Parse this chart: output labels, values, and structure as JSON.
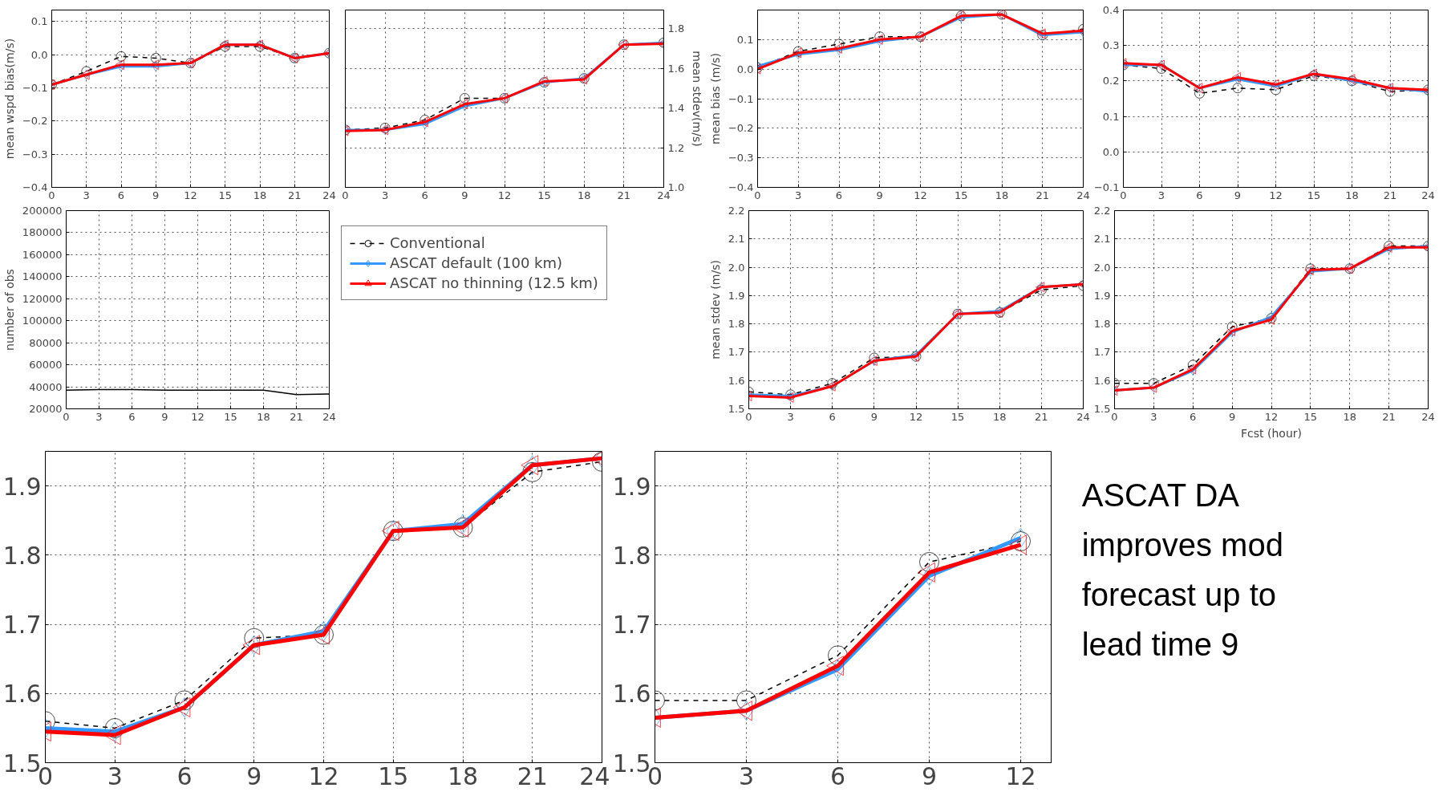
{
  "chart_data": [
    {
      "type": "line",
      "ylabel": "mean wspd bias(m/s)",
      "x": [
        0,
        3,
        6,
        9,
        12,
        15,
        18,
        21,
        24
      ],
      "xlim": [
        0,
        24
      ],
      "xticks": [
        0,
        3,
        6,
        9,
        12,
        15,
        18,
        21,
        24
      ],
      "ylim": [
        -0.4,
        0.135
      ],
      "yticks": [
        {
          "value": -0.4,
          "label": "−0.4"
        },
        {
          "value": -0.3,
          "label": "−0.3"
        },
        {
          "value": -0.2,
          "label": "−0.2"
        },
        {
          "value": -0.1,
          "label": "−0.1"
        },
        {
          "value": 0,
          "label": "0.0"
        },
        0.1
      ],
      "grid": true,
      "legend": "bottom right",
      "series": [
        {
          "name": "Conventional",
          "color": "#000000",
          "marker": "circle",
          "line_style": "dashed",
          "values": [
            -0.09,
            -0.05,
            -0.005,
            -0.01,
            -0.025,
            0.025,
            0.025,
            -0.01,
            0.005
          ]
        },
        {
          "name": "ASCAT default (100 km)",
          "color": "#3399ff",
          "marker": "diamond",
          "line_style": "solid",
          "values": [
            -0.09,
            -0.06,
            -0.035,
            -0.035,
            -0.025,
            0.03,
            0.03,
            -0.01,
            0.005
          ]
        },
        {
          "name": "ASCAT no thinning (12.5 km)",
          "color": "#ff0000",
          "marker": "triangle",
          "line_style": "solid",
          "values": [
            -0.09,
            -0.06,
            -0.03,
            -0.03,
            -0.025,
            0.03,
            0.03,
            -0.01,
            0.005
          ]
        }
      ]
    },
    {
      "type": "line",
      "y2label": "mean stdev(m/s)",
      "x": [
        0,
        3,
        6,
        9,
        12,
        15,
        18,
        21,
        24
      ],
      "xlim": [
        0,
        24
      ],
      "xticks": [
        0,
        3,
        6,
        9,
        12,
        15,
        18,
        21,
        24
      ],
      "y2lim": [
        1.0,
        1.895
      ],
      "y2ticks": [
        {
          "value": 1,
          "label": "1.0"
        },
        1.2,
        1.4,
        1.6,
        1.8
      ],
      "grid": true,
      "series": [
        {
          "color": "#000000",
          "marker": "circle",
          "line_style": "dashed",
          "axis": "y2",
          "values": [
            1.29,
            1.3,
            1.34,
            1.45,
            1.45,
            1.53,
            1.55,
            1.72,
            1.73
          ]
        },
        {
          "color": "#3399ff",
          "marker": "diamond",
          "line_style": "solid",
          "axis": "y2",
          "values": [
            1.29,
            1.29,
            1.32,
            1.41,
            1.45,
            1.53,
            1.55,
            1.72,
            1.73
          ]
        },
        {
          "color": "#ff0000",
          "marker": "triangle",
          "line_style": "solid",
          "axis": "y2",
          "values": [
            1.285,
            1.29,
            1.33,
            1.42,
            1.45,
            1.535,
            1.545,
            1.72,
            1.725
          ]
        }
      ]
    },
    {
      "type": "line",
      "ylabel": "mean bias (m/s)",
      "x": [
        0,
        3,
        6,
        9,
        12,
        15,
        18,
        21,
        24
      ],
      "xlim": [
        0,
        24
      ],
      "xticks": [
        0,
        3,
        6,
        9,
        12,
        15,
        18,
        21,
        24
      ],
      "ylim": [
        -0.4,
        0.2
      ],
      "yticks": [
        {
          "value": -0.4,
          "label": "−0.4"
        },
        {
          "value": -0.3,
          "label": "−0.3"
        },
        {
          "value": -0.2,
          "label": "−0.2"
        },
        {
          "value": -0.1,
          "label": "−0.1"
        },
        {
          "value": 0,
          "label": "0.0"
        },
        0.1
      ],
      "grid": true,
      "series": [
        {
          "color": "#000000",
          "marker": "circle",
          "line_style": "dashed",
          "values": [
            0.005,
            0.06,
            0.085,
            0.11,
            0.11,
            0.18,
            0.185,
            0.115,
            0.135
          ]
        },
        {
          "color": "#3399ff",
          "marker": "diamond",
          "line_style": "solid",
          "values": [
            0.01,
            0.05,
            0.065,
            0.095,
            0.11,
            0.175,
            0.185,
            0.115,
            0.125
          ]
        },
        {
          "color": "#ff0000",
          "marker": "triangle",
          "line_style": "solid",
          "values": [
            0.0,
            0.055,
            0.07,
            0.1,
            0.11,
            0.18,
            0.185,
            0.12,
            0.13
          ]
        }
      ]
    },
    {
      "type": "line",
      "x": [
        0,
        3,
        6,
        9,
        12,
        15,
        18,
        21,
        24
      ],
      "xlim": [
        0,
        24
      ],
      "xticks": [
        0,
        3,
        6,
        9,
        12,
        15,
        18,
        21,
        24
      ],
      "ylim": [
        -0.1,
        0.4
      ],
      "yticks": [
        {
          "value": -0.1,
          "label": "−0.1"
        },
        {
          "value": 0,
          "label": "0.0"
        },
        0.1,
        0.2,
        0.3,
        0.4
      ],
      "grid": true,
      "series": [
        {
          "color": "#000000",
          "marker": "circle",
          "line_style": "dashed",
          "values": [
            0.245,
            0.235,
            0.165,
            0.18,
            0.175,
            0.215,
            0.2,
            0.17,
            0.175
          ]
        },
        {
          "color": "#3399ff",
          "marker": "diamond",
          "line_style": "solid",
          "values": [
            0.245,
            0.245,
            0.18,
            0.205,
            0.185,
            0.22,
            0.2,
            0.18,
            0.17
          ]
        },
        {
          "color": "#ff0000",
          "marker": "triangle",
          "line_style": "solid",
          "values": [
            0.25,
            0.245,
            0.18,
            0.21,
            0.19,
            0.22,
            0.205,
            0.18,
            0.175
          ]
        }
      ]
    },
    {
      "type": "line",
      "ylabel": "number of obs",
      "x": [
        0,
        3,
        6,
        9,
        12,
        15,
        18,
        21,
        24
      ],
      "xlim": [
        0,
        24
      ],
      "xticks": [
        0,
        3,
        6,
        9,
        12,
        15,
        18,
        21,
        24
      ],
      "ylim": [
        20000,
        200000
      ],
      "yticks": [
        20000,
        40000,
        60000,
        80000,
        100000,
        120000,
        140000,
        160000,
        180000,
        200000
      ],
      "grid": true,
      "series": [
        {
          "color": "#000000",
          "marker": "none",
          "line_style": "solid",
          "values": [
            37000,
            37500,
            37500,
            37000,
            37000,
            37000,
            37000,
            33000,
            33500
          ]
        }
      ]
    },
    {
      "type": "line",
      "ylabel": "mean stdev (m/s)",
      "x": [
        0,
        3,
        6,
        9,
        12,
        15,
        18,
        21,
        24
      ],
      "xlim": [
        0,
        24
      ],
      "xticks": [
        0,
        3,
        6,
        9,
        12,
        15,
        18,
        21,
        24
      ],
      "ylim": [
        1.5,
        2.2
      ],
      "yticks": [
        1.5,
        1.6,
        1.7,
        1.8,
        1.9,
        {
          "value": 2,
          "label": "2.0"
        },
        2.1,
        2.2
      ],
      "grid": true,
      "series": [
        {
          "color": "#000000",
          "marker": "circle",
          "line_style": "dashed",
          "values": [
            1.56,
            1.55,
            1.59,
            1.68,
            1.685,
            1.835,
            1.84,
            1.92,
            1.935
          ]
        },
        {
          "color": "#3399ff",
          "marker": "diamond",
          "line_style": "solid",
          "values": [
            1.55,
            1.545,
            1.58,
            1.67,
            1.69,
            1.835,
            1.845,
            1.93,
            1.94
          ]
        },
        {
          "color": "#ff0000",
          "marker": "triangle",
          "line_style": "solid",
          "values": [
            1.545,
            1.54,
            1.58,
            1.67,
            1.685,
            1.835,
            1.84,
            1.93,
            1.94
          ]
        }
      ]
    },
    {
      "type": "line",
      "xlabel": "Fcst (hour)",
      "x": [
        0,
        3,
        6,
        9,
        12,
        15,
        18,
        21,
        24
      ],
      "xlim": [
        0,
        24
      ],
      "xticks": [
        0,
        3,
        6,
        9,
        12,
        15,
        18,
        21,
        24
      ],
      "ylim": [
        1.5,
        2.2
      ],
      "yticks": [
        1.5,
        1.6,
        1.7,
        1.8,
        1.9,
        {
          "value": 2,
          "label": "2.0"
        },
        2.1,
        2.2
      ],
      "grid": true,
      "series": [
        {
          "color": "#000000",
          "marker": "circle",
          "line_style": "dashed",
          "values": [
            1.59,
            1.59,
            1.655,
            1.79,
            1.82,
            1.995,
            1.995,
            2.075,
            2.075
          ]
        },
        {
          "color": "#3399ff",
          "marker": "diamond",
          "line_style": "solid",
          "values": [
            1.565,
            1.575,
            1.635,
            1.77,
            1.825,
            1.985,
            1.995,
            2.065,
            2.075
          ]
        },
        {
          "color": "#ff0000",
          "marker": "triangle",
          "line_style": "solid",
          "values": [
            1.565,
            1.575,
            1.64,
            1.775,
            1.815,
            1.99,
            1.995,
            2.07,
            2.07
          ]
        }
      ]
    },
    {
      "type": "line",
      "x": [
        0,
        3,
        6,
        9,
        12,
        15,
        18,
        21,
        24
      ],
      "xlim": [
        0,
        24
      ],
      "xticks": [
        0,
        3,
        6,
        9,
        12,
        15,
        18,
        21,
        24
      ],
      "ylim": [
        1.5,
        1.95
      ],
      "yticks": [
        1.5,
        1.6,
        1.7,
        1.8,
        1.9
      ],
      "grid": true,
      "series": [
        {
          "color": "#000000",
          "marker": "circle",
          "line_style": "dashed",
          "values": [
            1.56,
            1.55,
            1.59,
            1.68,
            1.685,
            1.835,
            1.84,
            1.92,
            1.935
          ]
        },
        {
          "color": "#3399ff",
          "marker": "diamond",
          "line_style": "solid",
          "values": [
            1.55,
            1.545,
            1.58,
            1.67,
            1.69,
            1.835,
            1.845,
            1.93,
            1.94
          ]
        },
        {
          "color": "#ff0000",
          "marker": "triangle",
          "line_style": "solid",
          "values": [
            1.545,
            1.54,
            1.58,
            1.67,
            1.685,
            1.835,
            1.84,
            1.93,
            1.94
          ]
        }
      ]
    },
    {
      "type": "line",
      "x": [
        0,
        3,
        6,
        9,
        12
      ],
      "xlim": [
        0,
        13
      ],
      "xticks": [
        0,
        3,
        6,
        9,
        12
      ],
      "ylim": [
        1.5,
        1.95
      ],
      "yticks": [
        1.5,
        1.6,
        1.7,
        1.8,
        1.9
      ],
      "grid": true,
      "series": [
        {
          "color": "#000000",
          "marker": "circle",
          "line_style": "dashed",
          "values": [
            1.59,
            1.59,
            1.655,
            1.79,
            1.82
          ]
        },
        {
          "color": "#3399ff",
          "marker": "diamond",
          "line_style": "solid",
          "values": [
            1.565,
            1.575,
            1.635,
            1.77,
            1.825
          ]
        },
        {
          "color": "#ff0000",
          "marker": "triangle",
          "line_style": "solid",
          "values": [
            1.565,
            1.575,
            1.64,
            1.775,
            1.815
          ]
        }
      ]
    },
    {
      "type": "other",
      "annotations": [
        "ASCAT DA",
        "improves mod",
        "forecast up to",
        "lead time 9"
      ]
    }
  ]
}
